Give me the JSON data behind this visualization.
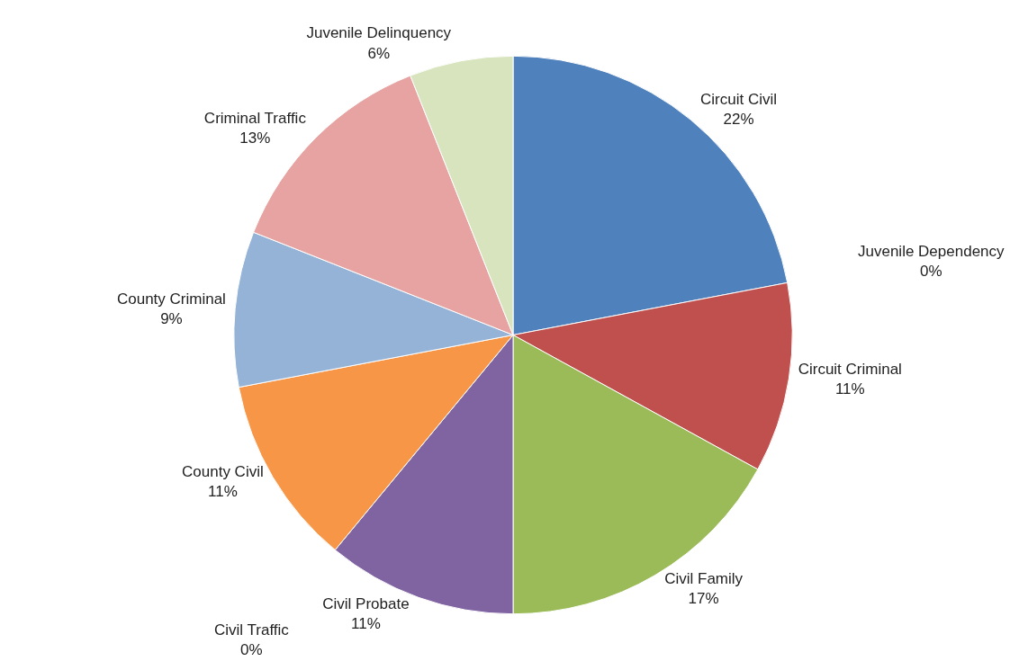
{
  "chart_data": {
    "type": "pie",
    "categories": [
      "Circuit Civil",
      "Juvenile Dependency",
      "Circuit Criminal",
      "Civil Family",
      "Civil Probate",
      "Civil Traffic",
      "County Civil",
      "County Criminal",
      "Criminal Traffic",
      "Juvenile Delinquency"
    ],
    "values": [
      22,
      0,
      11,
      17,
      11,
      0,
      11,
      9,
      13,
      6
    ],
    "value_labels": [
      "22%",
      "0%",
      "11%",
      "17%",
      "11%",
      "0%",
      "11%",
      "9%",
      "13%",
      "6%"
    ],
    "colors": [
      "#4f81bd",
      "#4bacc6",
      "#c0504d",
      "#9bbb59",
      "#8064a2",
      "#2c4d75",
      "#f79646",
      "#95b3d7",
      "#e6a3a2",
      "#d7e4bd"
    ],
    "legend": false
  }
}
